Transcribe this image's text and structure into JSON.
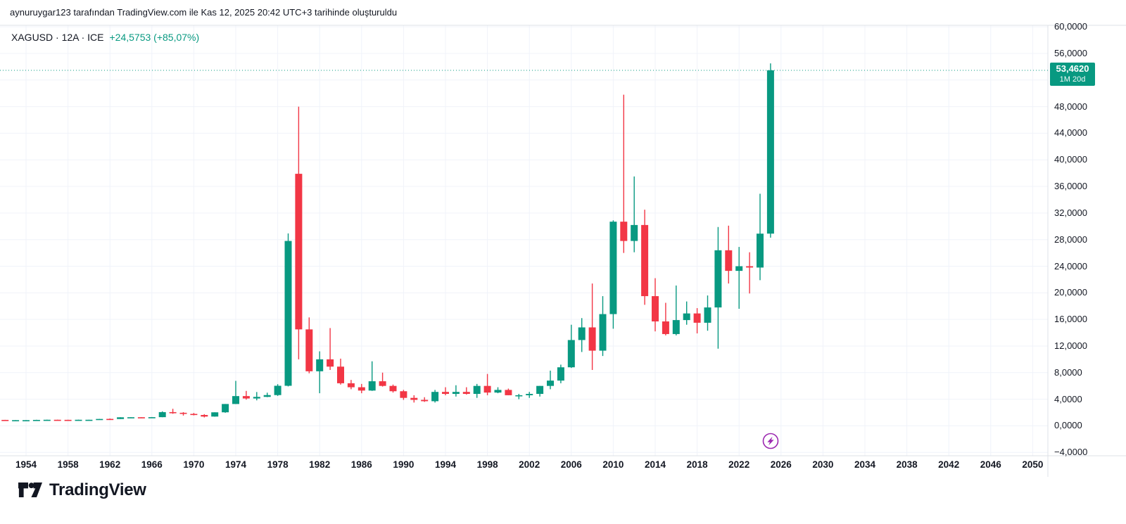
{
  "attribution": "aynuruygar123 tarafından TradingView.com ile Kas 12, 2025 20:42 UTC+3 tarihinde oluşturuldu",
  "legend": {
    "title": "XAGUSD · 12A · ICE",
    "change": "+24,5753 (+85,07%)"
  },
  "price_axis": {
    "ticks": [
      {
        "value": 60,
        "label": "60,0000"
      },
      {
        "value": 56,
        "label": "56,0000"
      },
      {
        "value": 48,
        "label": "48,0000"
      },
      {
        "value": 44,
        "label": "44,0000"
      },
      {
        "value": 40,
        "label": "40,0000"
      },
      {
        "value": 36,
        "label": "36,0000"
      },
      {
        "value": 32,
        "label": "32,0000"
      },
      {
        "value": 28,
        "label": "28,0000"
      },
      {
        "value": 24,
        "label": "24,0000"
      },
      {
        "value": 20,
        "label": "20,0000"
      },
      {
        "value": 16,
        "label": "16,0000"
      },
      {
        "value": 12,
        "label": "12,0000"
      },
      {
        "value": 8,
        "label": "8,0000"
      },
      {
        "value": 4,
        "label": "4,0000"
      },
      {
        "value": 0,
        "label": "0,0000"
      },
      {
        "value": -4,
        "label": "−4,0000"
      }
    ],
    "badge": {
      "price": "53,4620",
      "countdown": "1M 20d"
    }
  },
  "time_axis": {
    "years": [
      1954,
      1958,
      1962,
      1966,
      1970,
      1974,
      1978,
      1982,
      1986,
      1990,
      1994,
      1998,
      2002,
      2006,
      2010,
      2014,
      2018,
      2022,
      2026,
      2030,
      2034,
      2038,
      2042,
      2046,
      2050
    ],
    "labels": [
      "1954",
      "1958",
      "1962",
      "1966",
      "1970",
      "1974",
      "1978",
      "1982",
      "1986",
      "1990",
      "1994",
      "1998",
      "2002",
      "2006",
      "2010",
      "2014",
      "2018",
      "2022",
      "2026",
      "2030",
      "2034",
      "2038",
      "2042",
      "2046",
      "2050"
    ]
  },
  "event_marker": {
    "icon": "lightning-icon",
    "color": "#9c27b0",
    "year": 2025
  },
  "footer": {
    "brand": "TradingView"
  },
  "colors": {
    "up": "#089981",
    "down": "#f23645",
    "grid": "#f0f3fa",
    "axis_border": "#dde1e7",
    "text": "#131722",
    "price_line": "#089981",
    "badge_bg": "#089981",
    "background": "#ffffff"
  },
  "chart_data": {
    "type": "candlestick",
    "title": "XAGUSD · 12A · ICE",
    "symbol": "XAGUSD",
    "interval": "12A",
    "exchange": "ICE",
    "change_abs": "+24,5753",
    "change_pct": "+85,07%",
    "last_price": 53.462,
    "last_price_label": "53,4620",
    "bar_countdown": "1M 20d",
    "grid": true,
    "legend_position": "top-left",
    "price_scale_position": "right",
    "xlabel": "",
    "ylabel": "",
    "xlim": [
      1951,
      2052
    ],
    "ylim": [
      -4.7,
      61.0
    ],
    "y_grid": [
      -4,
      0,
      4,
      8,
      12,
      16,
      20,
      24,
      28,
      32,
      36,
      40,
      44,
      48,
      52,
      56,
      60
    ],
    "columns": [
      "year",
      "open",
      "high",
      "low",
      "close"
    ],
    "rows": [
      [
        1951,
        0.88,
        0.9,
        0.85,
        0.89
      ],
      [
        1952,
        0.89,
        0.9,
        0.83,
        0.85
      ],
      [
        1953,
        0.85,
        0.86,
        0.84,
        0.85
      ],
      [
        1954,
        0.85,
        0.86,
        0.84,
        0.85
      ],
      [
        1955,
        0.85,
        0.91,
        0.85,
        0.89
      ],
      [
        1956,
        0.89,
        0.92,
        0.89,
        0.91
      ],
      [
        1957,
        0.91,
        0.92,
        0.89,
        0.9
      ],
      [
        1958,
        0.9,
        0.91,
        0.88,
        0.89
      ],
      [
        1959,
        0.89,
        0.92,
        0.89,
        0.91
      ],
      [
        1960,
        0.91,
        0.92,
        0.9,
        0.91
      ],
      [
        1961,
        0.91,
        1.04,
        0.91,
        1.03
      ],
      [
        1962,
        1.04,
        1.1,
        1.01,
        1.02
      ],
      [
        1963,
        1.02,
        1.29,
        1.02,
        1.28
      ],
      [
        1964,
        1.28,
        1.3,
        1.27,
        1.29
      ],
      [
        1965,
        1.29,
        1.3,
        1.27,
        1.28
      ],
      [
        1966,
        1.28,
        1.32,
        1.27,
        1.3
      ],
      [
        1967,
        1.3,
        2.17,
        1.29,
        2.06
      ],
      [
        1968,
        2.06,
        2.56,
        1.81,
        1.96
      ],
      [
        1969,
        1.96,
        2.05,
        1.54,
        1.79
      ],
      [
        1970,
        1.79,
        1.93,
        1.57,
        1.63
      ],
      [
        1971,
        1.63,
        1.75,
        1.26,
        1.39
      ],
      [
        1972,
        1.39,
        2.03,
        1.37,
        2.03
      ],
      [
        1973,
        2.03,
        3.28,
        1.96,
        3.28
      ],
      [
        1974,
        3.28,
        6.76,
        3.27,
        4.47
      ],
      [
        1975,
        4.47,
        5.25,
        3.93,
        4.11
      ],
      [
        1976,
        4.11,
        5.08,
        3.83,
        4.35
      ],
      [
        1977,
        4.35,
        4.98,
        4.31,
        4.62
      ],
      [
        1978,
        4.62,
        6.26,
        4.5,
        6.02
      ],
      [
        1979,
        6.02,
        28.93,
        5.92,
        27.8
      ],
      [
        1980,
        37.9,
        48.0,
        10.0,
        14.5
      ],
      [
        1981,
        14.5,
        16.3,
        7.9,
        8.2
      ],
      [
        1982,
        8.2,
        11.2,
        4.9,
        10.0
      ],
      [
        1983,
        10.0,
        14.7,
        8.4,
        8.9
      ],
      [
        1984,
        8.9,
        10.1,
        6.2,
        6.4
      ],
      [
        1985,
        6.4,
        6.9,
        5.5,
        5.8
      ],
      [
        1986,
        5.8,
        6.3,
        4.9,
        5.3
      ],
      [
        1987,
        5.3,
        9.7,
        5.25,
        6.7
      ],
      [
        1988,
        6.7,
        8.0,
        5.9,
        6.0
      ],
      [
        1989,
        6.0,
        6.2,
        5.0,
        5.2
      ],
      [
        1990,
        5.2,
        5.4,
        3.9,
        4.2
      ],
      [
        1991,
        4.2,
        4.6,
        3.5,
        3.9
      ],
      [
        1992,
        3.9,
        4.3,
        3.6,
        3.7
      ],
      [
        1993,
        3.7,
        5.4,
        3.5,
        5.1
      ],
      [
        1994,
        5.1,
        5.8,
        4.6,
        4.8
      ],
      [
        1995,
        4.8,
        6.1,
        4.4,
        5.1
      ],
      [
        1996,
        5.1,
        5.8,
        4.7,
        4.8
      ],
      [
        1997,
        4.8,
        6.3,
        4.2,
        6.0
      ],
      [
        1998,
        6.0,
        7.8,
        4.6,
        5.0
      ],
      [
        1999,
        5.0,
        5.8,
        4.9,
        5.4
      ],
      [
        2000,
        5.4,
        5.6,
        4.6,
        4.6
      ],
      [
        2001,
        4.6,
        4.8,
        4.0,
        4.6
      ],
      [
        2002,
        4.6,
        5.1,
        4.2,
        4.8
      ],
      [
        2003,
        4.8,
        6.0,
        4.4,
        6.0
      ],
      [
        2004,
        6.0,
        8.3,
        5.5,
        6.8
      ],
      [
        2005,
        6.8,
        9.2,
        6.4,
        8.8
      ],
      [
        2006,
        8.8,
        15.2,
        8.7,
        12.9
      ],
      [
        2007,
        12.9,
        16.2,
        11.1,
        14.8
      ],
      [
        2008,
        14.8,
        21.4,
        8.4,
        11.3
      ],
      [
        2009,
        11.3,
        19.5,
        10.5,
        16.8
      ],
      [
        2010,
        16.8,
        30.9,
        14.6,
        30.7
      ],
      [
        2011,
        30.7,
        49.8,
        26.0,
        27.8
      ],
      [
        2012,
        27.8,
        37.5,
        26.1,
        30.2
      ],
      [
        2013,
        30.2,
        32.5,
        18.2,
        19.5
      ],
      [
        2014,
        19.5,
        22.2,
        14.2,
        15.7
      ],
      [
        2015,
        15.7,
        18.5,
        13.6,
        13.8
      ],
      [
        2016,
        13.8,
        21.1,
        13.6,
        15.9
      ],
      [
        2017,
        15.9,
        18.7,
        15.2,
        16.9
      ],
      [
        2018,
        16.9,
        17.7,
        13.9,
        15.5
      ],
      [
        2019,
        15.5,
        19.6,
        14.3,
        17.8
      ],
      [
        2020,
        17.8,
        29.9,
        11.6,
        26.4
      ],
      [
        2021,
        26.4,
        30.1,
        21.4,
        23.3
      ],
      [
        2022,
        23.3,
        26.9,
        17.6,
        24.0
      ],
      [
        2023,
        24.0,
        26.1,
        19.9,
        23.8
      ],
      [
        2024,
        23.8,
        34.9,
        21.9,
        28.9
      ],
      [
        2025,
        28.9,
        54.5,
        28.3,
        53.462
      ]
    ]
  }
}
